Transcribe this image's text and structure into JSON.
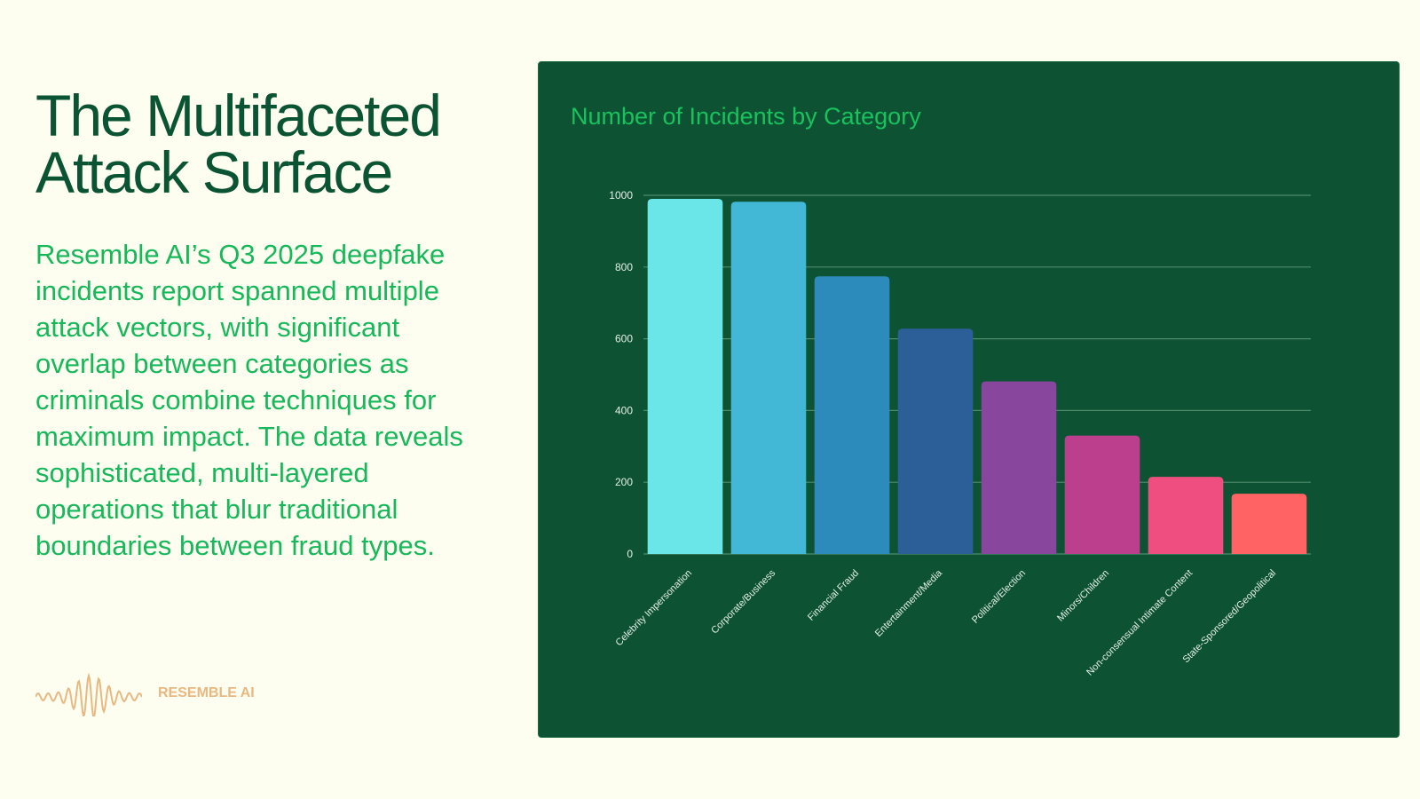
{
  "left": {
    "title": "The Multifaceted Attack Surface",
    "body": "Resemble AI’s Q3 2025 deepfake incidents report spanned multiple attack vectors, with significant overlap between categories as criminals combine techniques for maximum impact. The data reveals sophisticated, multi-layered operations that blur traditional boundaries between fraud types.",
    "logo_text": "RESEMBLE AI"
  },
  "chart_data": {
    "type": "bar",
    "title": "Number of Incidents by Category",
    "xlabel": "",
    "ylabel": "",
    "ylim": [
      0,
      1000
    ],
    "yticks": [
      0,
      200,
      400,
      600,
      800,
      1000
    ],
    "grid": true,
    "categories": [
      "Celebrity Impersonation",
      "Corporate/Business",
      "Financial Fraud",
      "Entertainment/Media",
      "Political/Election",
      "Minors/Children",
      "Non-consensual Intimate Content",
      "State-Sponsored/Geopolitical"
    ],
    "values": [
      990,
      982,
      774,
      628,
      481,
      330,
      215,
      168
    ],
    "colors": [
      "#6be6e8",
      "#42b7d6",
      "#2c8bba",
      "#2c5e98",
      "#88479c",
      "#bb3f8c",
      "#ee4f80",
      "#ff6363"
    ]
  }
}
